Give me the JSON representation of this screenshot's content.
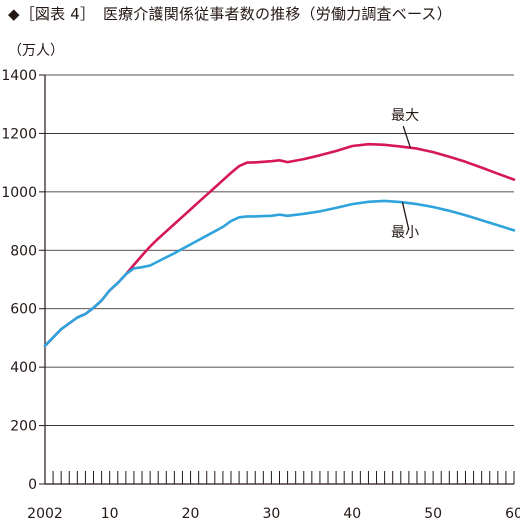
{
  "title": "◆［図表 4］　医療介護関係従事者数の推移（労働力調査ベース）",
  "unit_label": "（万人）",
  "chart_data": {
    "type": "line",
    "title": "◆［図表 4］　医療介護関係従事者数の推移（労働力調査ベース）",
    "ylabel": "（万人）",
    "xlabel": "",
    "xlim": [
      2002,
      2060
    ],
    "ylim": [
      0,
      1400
    ],
    "x_tick_labels": [
      "2002",
      "10",
      "20",
      "30",
      "40",
      "50",
      "60"
    ],
    "x_tick_values": [
      2002,
      2010,
      2020,
      2030,
      2040,
      2050,
      2060
    ],
    "y_ticks": [
      0,
      200,
      400,
      600,
      800,
      1000,
      1200,
      1400
    ],
    "grid": "horizontal",
    "series": [
      {
        "name": "最大",
        "color": "#d6175c",
        "x": [
          2002,
          2004,
          2006,
          2007,
          2008,
          2009,
          2010,
          2011,
          2012,
          2013,
          2014,
          2015,
          2016,
          2017,
          2018,
          2019,
          2020,
          2021,
          2022,
          2023,
          2024,
          2025,
          2026,
          2027,
          2028,
          2029,
          2030,
          2031,
          2032,
          2034,
          2036,
          2038,
          2040,
          2042,
          2044,
          2046,
          2048,
          2050,
          2052,
          2054,
          2056,
          2058,
          2060
        ],
        "values": [
          473,
          530,
          570,
          582,
          603,
          628,
          663,
          688,
          718,
          750,
          782,
          813,
          840,
          865,
          890,
          915,
          940,
          965,
          990,
          1015,
          1040,
          1065,
          1088,
          1100,
          1101,
          1103,
          1105,
          1108,
          1102,
          1112,
          1125,
          1140,
          1157,
          1163,
          1161,
          1155,
          1148,
          1136,
          1120,
          1103,
          1083,
          1062,
          1042
        ]
      },
      {
        "name": "最小",
        "color": "#2ea3dc",
        "x": [
          2002,
          2004,
          2006,
          2007,
          2008,
          2009,
          2010,
          2011,
          2012,
          2013,
          2014,
          2015,
          2016,
          2018,
          2020,
          2022,
          2024,
          2025,
          2026,
          2027,
          2028,
          2029,
          2030,
          2031,
          2032,
          2034,
          2036,
          2038,
          2040,
          2042,
          2044,
          2046,
          2048,
          2050,
          2052,
          2054,
          2056,
          2058,
          2060
        ],
        "values": [
          473,
          530,
          570,
          582,
          603,
          628,
          663,
          688,
          718,
          738,
          742,
          748,
          762,
          790,
          820,
          850,
          880,
          900,
          913,
          916,
          916,
          917,
          918,
          922,
          918,
          925,
          933,
          945,
          958,
          966,
          969,
          965,
          958,
          948,
          935,
          920,
          903,
          886,
          868
        ]
      }
    ],
    "annotations": [
      "最大",
      "最小"
    ]
  }
}
